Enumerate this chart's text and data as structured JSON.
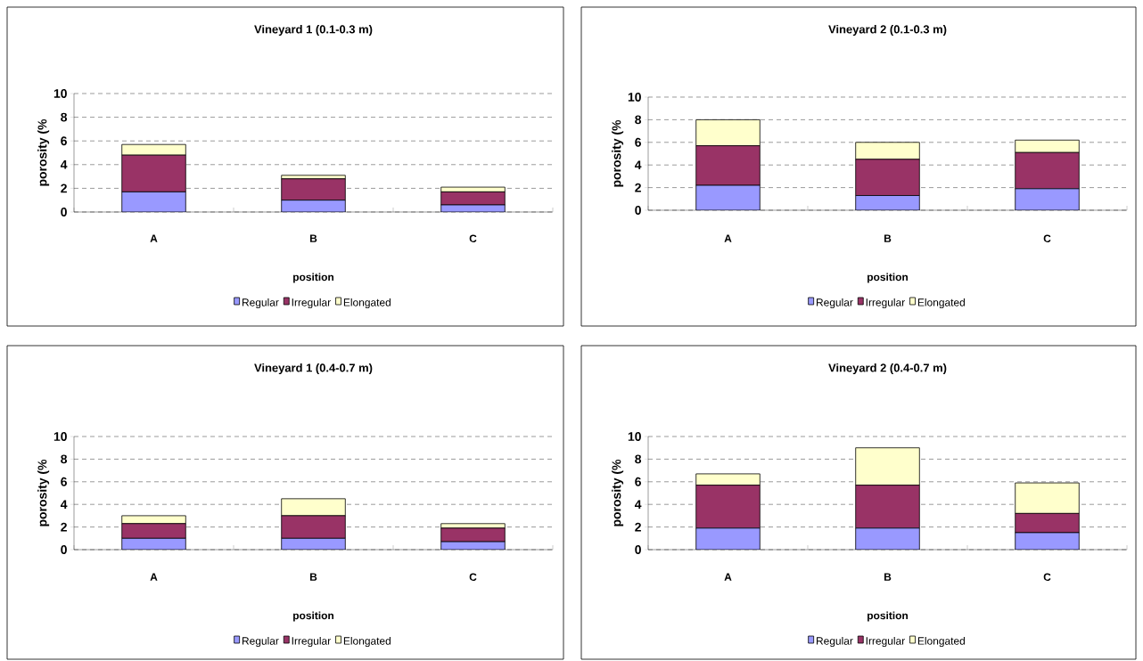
{
  "chart_data": [
    {
      "type": "bar",
      "title": "Vineyard 1 (0.1-0.3 m)",
      "xlabel": "position",
      "ylabel": "porosity (%",
      "categories": [
        "A",
        "B",
        "C"
      ],
      "stacked": true,
      "ylim": [
        0,
        10
      ],
      "yticks": [
        0,
        2,
        4,
        6,
        8,
        10
      ],
      "grid": "y",
      "legend": "bottom",
      "series": [
        {
          "name": "Regular",
          "color": "#9999ff",
          "values": [
            1.7,
            1.0,
            0.6
          ]
        },
        {
          "name": "Irregular",
          "color": "#993366",
          "values": [
            3.1,
            1.8,
            1.1
          ]
        },
        {
          "name": "Elongated",
          "color": "#ffffcc",
          "values": [
            0.9,
            0.3,
            0.4
          ]
        }
      ]
    },
    {
      "type": "bar",
      "title": "Vineyard 2 (0.1-0.3 m)",
      "xlabel": "position",
      "ylabel": "porosity (%",
      "categories": [
        "A",
        "B",
        "C"
      ],
      "stacked": true,
      "ylim": [
        0,
        10
      ],
      "yticks": [
        0,
        2,
        4,
        6,
        8,
        10
      ],
      "grid": "y",
      "legend": "bottom",
      "series": [
        {
          "name": "Regular",
          "color": "#9999ff",
          "values": [
            2.2,
            1.3,
            1.9
          ]
        },
        {
          "name": "Irregular",
          "color": "#993366",
          "values": [
            3.5,
            3.2,
            3.2
          ]
        },
        {
          "name": "Elongated",
          "color": "#ffffcc",
          "values": [
            2.3,
            1.5,
            1.1
          ]
        }
      ]
    },
    {
      "type": "bar",
      "title": "Vineyard 1 (0.4-0.7 m)",
      "xlabel": "position",
      "ylabel": "porosity (%",
      "categories": [
        "A",
        "B",
        "C"
      ],
      "stacked": true,
      "ylim": [
        0,
        10
      ],
      "yticks": [
        0,
        2,
        4,
        6,
        8,
        10
      ],
      "grid": "y",
      "legend": "bottom",
      "series": [
        {
          "name": "Regular",
          "color": "#9999ff",
          "values": [
            1.0,
            1.0,
            0.7
          ]
        },
        {
          "name": "Irregular",
          "color": "#993366",
          "values": [
            1.3,
            2.0,
            1.2
          ]
        },
        {
          "name": "Elongated",
          "color": "#ffffcc",
          "values": [
            0.7,
            1.5,
            0.4
          ]
        }
      ]
    },
    {
      "type": "bar",
      "title": "Vineyard 2 (0.4-0.7 m)",
      "xlabel": "position",
      "ylabel": "porosity (%",
      "categories": [
        "A",
        "B",
        "C"
      ],
      "stacked": true,
      "ylim": [
        0,
        10
      ],
      "yticks": [
        0,
        2,
        4,
        6,
        8,
        10
      ],
      "grid": "y",
      "legend": "bottom",
      "series": [
        {
          "name": "Regular",
          "color": "#9999ff",
          "values": [
            1.9,
            1.9,
            1.5
          ]
        },
        {
          "name": "Irregular",
          "color": "#993366",
          "values": [
            3.8,
            3.8,
            1.7
          ]
        },
        {
          "name": "Elongated",
          "color": "#ffffcc",
          "values": [
            1.0,
            3.3,
            2.7
          ]
        }
      ]
    }
  ]
}
